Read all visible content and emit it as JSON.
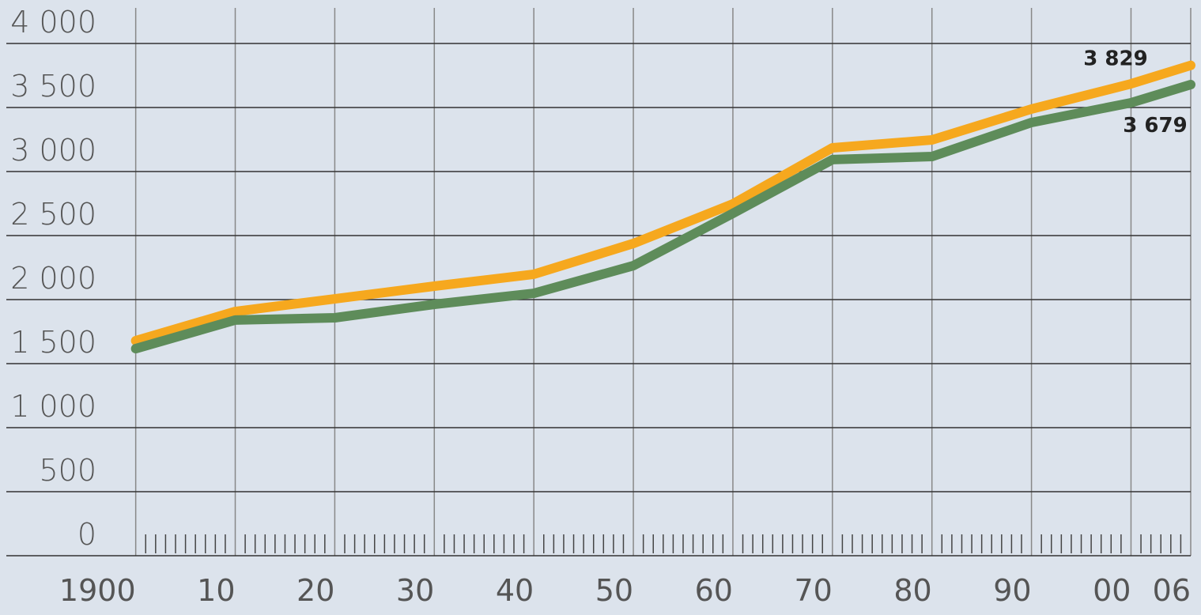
{
  "chart_data": {
    "type": "line",
    "x": [
      1900,
      1910,
      1920,
      1930,
      1940,
      1950,
      1960,
      1970,
      1980,
      1990,
      2000,
      2006
    ],
    "series": [
      {
        "color": "#f6a81e",
        "values": [
          1679,
          1907,
          2006,
          2105,
          2198,
          2438,
          2747,
          3185,
          3247,
          3488,
          3685,
          3829
        ],
        "value_labels": [
          null,
          null,
          null,
          null,
          null,
          null,
          null,
          null,
          null,
          null,
          null,
          "3 829"
        ]
      },
      {
        "color": "#5e8c5a",
        "values": [
          1617,
          1840,
          1858,
          1963,
          2049,
          2265,
          2673,
          3093,
          3117,
          3383,
          3537,
          3679
        ],
        "value_labels": [
          null,
          null,
          null,
          null,
          null,
          null,
          null,
          null,
          null,
          null,
          null,
          "3 679"
        ]
      }
    ],
    "xlim": [
      1887,
      2006
    ],
    "xticks": [
      1900,
      {
        "value": 1910,
        "label": "10"
      },
      {
        "value": 1920,
        "label": "20"
      },
      {
        "value": 1930,
        "label": "30"
      },
      {
        "value": 1940,
        "label": "40"
      },
      {
        "value": 1950,
        "label": "50"
      },
      {
        "value": 1960,
        "label": "60"
      },
      {
        "value": 1970,
        "label": "70"
      },
      {
        "value": 1980,
        "label": "80"
      },
      {
        "value": 1990,
        "label": "90"
      },
      {
        "value": 2000,
        "label": "00"
      },
      {
        "value": 2006,
        "label": "06"
      }
    ],
    "ylim": [
      0,
      4000
    ],
    "yticks": [
      0,
      500,
      {
        "value": 1000,
        "label": "1 000"
      },
      {
        "value": 1500,
        "label": "1 500"
      },
      {
        "value": 2000,
        "label": "2 000"
      },
      {
        "value": 2500,
        "label": "2 500"
      },
      {
        "value": 3000,
        "label": "3 000"
      },
      {
        "value": 3500,
        "label": "3 500"
      },
      {
        "value": 4000,
        "label": "4 000"
      }
    ],
    "grid": true
  }
}
